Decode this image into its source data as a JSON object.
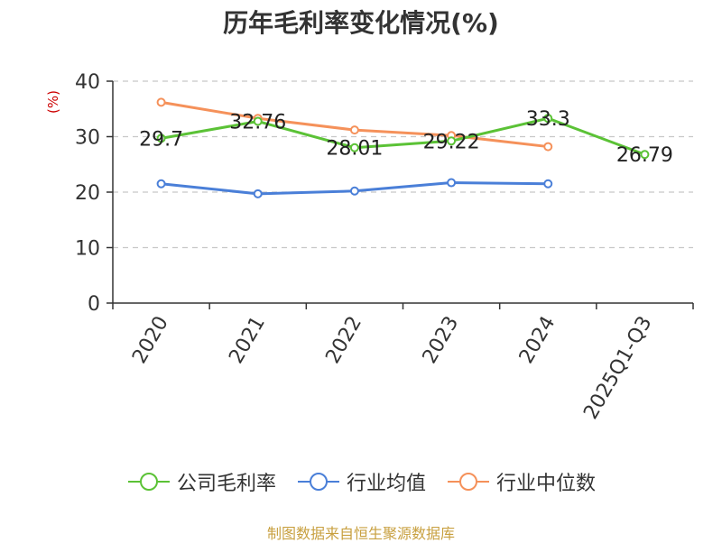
{
  "chart_data": {
    "type": "line",
    "title": "历年毛利率变化情况(%)",
    "ylabel": "(%)",
    "xlabel": "",
    "categories": [
      "2020",
      "2021",
      "2022",
      "2023",
      "2024",
      "2025Q1-Q3"
    ],
    "ylim": [
      0,
      40
    ],
    "yticks": [
      0,
      10,
      20,
      30,
      40
    ],
    "grid": true,
    "legend_position": "bottom",
    "series": [
      {
        "name": "公司毛利率",
        "color": "#5bc236",
        "values": [
          29.7,
          32.76,
          28.01,
          29.22,
          33.3,
          26.79
        ],
        "labels": [
          "29.7",
          "32.76",
          "28.01",
          "29.22",
          "33.3",
          "26.79"
        ]
      },
      {
        "name": "行业均值",
        "color": "#4a7fd8",
        "values": [
          21.5,
          19.7,
          20.2,
          21.7,
          21.5,
          null
        ]
      },
      {
        "name": "行业中位数",
        "color": "#f5915a",
        "values": [
          36.2,
          33.3,
          31.2,
          30.2,
          28.2,
          null
        ]
      }
    ]
  },
  "source": "制图数据来自恒生聚源数据库"
}
